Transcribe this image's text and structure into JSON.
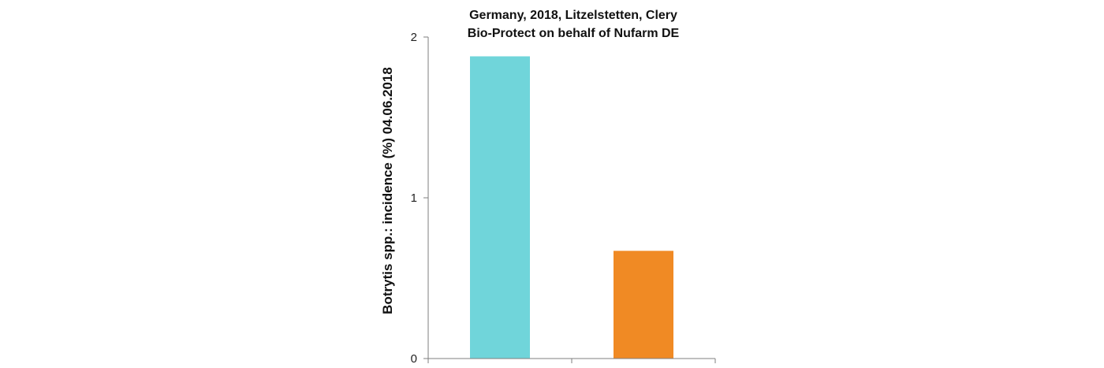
{
  "chart_data": {
    "type": "bar",
    "title_lines": [
      "Germany, 2018, Litzelstetten, Clery",
      "Bio-Protect on behalf of Nufarm DE"
    ],
    "xlabel": "",
    "ylabel": "Botrytis spp.: incidence (%)  04.06.2018",
    "categories": [
      "",
      ""
    ],
    "values": [
      1.88,
      0.67
    ],
    "bar_colors": [
      "#70d5da",
      "#f08a24"
    ],
    "ylim": [
      0,
      2
    ],
    "yticks": [
      0,
      1,
      2
    ],
    "ytick_labels": [
      "0",
      "1",
      "2"
    ],
    "grid": false,
    "legend": "none"
  }
}
